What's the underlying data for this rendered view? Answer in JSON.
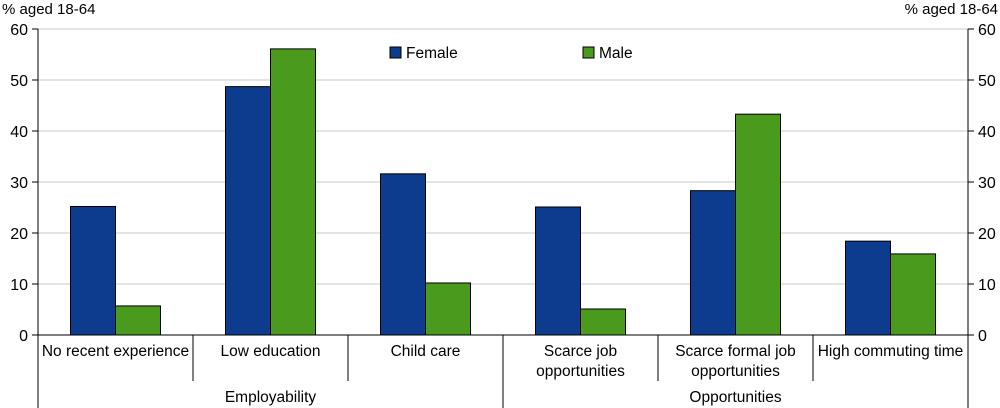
{
  "chart_data": {
    "type": "bar",
    "y_unit_left": "% aged 18-64",
    "y_unit_right": "% aged 18-64",
    "ylim": [
      0,
      60
    ],
    "y_ticks": [
      "0",
      "10",
      "20",
      "30",
      "40",
      "50",
      "60"
    ],
    "y_tick_values": [
      0,
      10,
      20,
      30,
      40,
      50,
      60
    ],
    "categories": [
      [
        "No recent experience"
      ],
      [
        "Low education"
      ],
      [
        "Child care"
      ],
      [
        "Scarce job",
        "opportunities"
      ],
      [
        "Scarce formal job",
        "opportunities"
      ],
      [
        "High commuting time"
      ]
    ],
    "groups": [
      {
        "label": "Employability",
        "categories": [
          0,
          1,
          2
        ]
      },
      {
        "label": "Opportunities",
        "categories": [
          3,
          4,
          5
        ]
      }
    ],
    "series": [
      {
        "name": "Female",
        "color": "#0d3b8e",
        "values": [
          25.2,
          48.7,
          31.6,
          25.1,
          28.3,
          18.4
        ]
      },
      {
        "name": "Male",
        "color": "#4a9a1e",
        "values": [
          5.7,
          56.1,
          10.2,
          5.1,
          43.3,
          15.9
        ]
      }
    ],
    "legend_position": "top-center",
    "grid": true
  }
}
